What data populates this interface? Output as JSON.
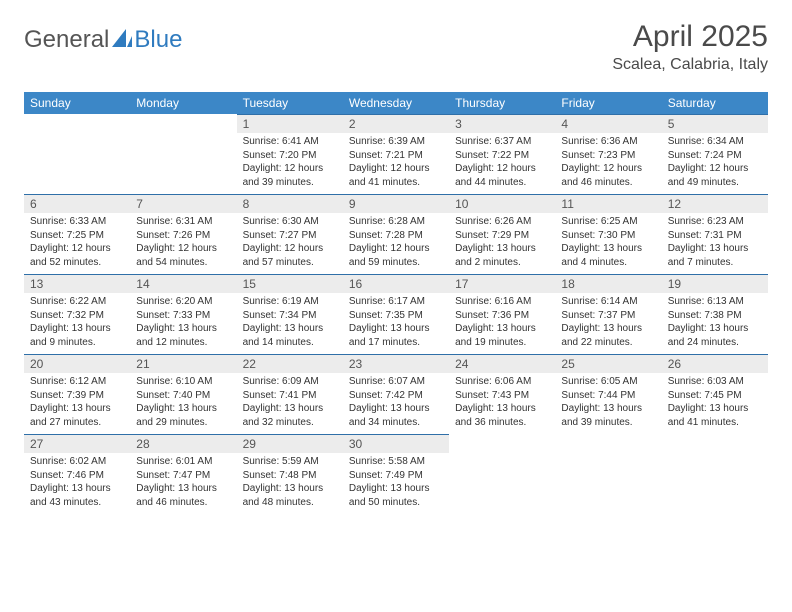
{
  "logo": {
    "text1": "General",
    "text2": "Blue"
  },
  "title": "April 2025",
  "location": "Scalea, Calabria, Italy",
  "colors": {
    "header_bg": "#3c87c7",
    "header_text": "#ffffff",
    "daynum_bg": "#ececec",
    "border": "#2f6fa8",
    "page_bg": "#ffffff",
    "text": "#333333",
    "title_text": "#4a4a4a",
    "logo_gray": "#555555",
    "logo_blue": "#2f7bbf"
  },
  "weekdays": [
    "Sunday",
    "Monday",
    "Tuesday",
    "Wednesday",
    "Thursday",
    "Friday",
    "Saturday"
  ],
  "weeks": [
    [
      null,
      null,
      {
        "n": "1",
        "sr": "6:41 AM",
        "ss": "7:20 PM",
        "dl": "12 hours and 39 minutes."
      },
      {
        "n": "2",
        "sr": "6:39 AM",
        "ss": "7:21 PM",
        "dl": "12 hours and 41 minutes."
      },
      {
        "n": "3",
        "sr": "6:37 AM",
        "ss": "7:22 PM",
        "dl": "12 hours and 44 minutes."
      },
      {
        "n": "4",
        "sr": "6:36 AM",
        "ss": "7:23 PM",
        "dl": "12 hours and 46 minutes."
      },
      {
        "n": "5",
        "sr": "6:34 AM",
        "ss": "7:24 PM",
        "dl": "12 hours and 49 minutes."
      }
    ],
    [
      {
        "n": "6",
        "sr": "6:33 AM",
        "ss": "7:25 PM",
        "dl": "12 hours and 52 minutes."
      },
      {
        "n": "7",
        "sr": "6:31 AM",
        "ss": "7:26 PM",
        "dl": "12 hours and 54 minutes."
      },
      {
        "n": "8",
        "sr": "6:30 AM",
        "ss": "7:27 PM",
        "dl": "12 hours and 57 minutes."
      },
      {
        "n": "9",
        "sr": "6:28 AM",
        "ss": "7:28 PM",
        "dl": "12 hours and 59 minutes."
      },
      {
        "n": "10",
        "sr": "6:26 AM",
        "ss": "7:29 PM",
        "dl": "13 hours and 2 minutes."
      },
      {
        "n": "11",
        "sr": "6:25 AM",
        "ss": "7:30 PM",
        "dl": "13 hours and 4 minutes."
      },
      {
        "n": "12",
        "sr": "6:23 AM",
        "ss": "7:31 PM",
        "dl": "13 hours and 7 minutes."
      }
    ],
    [
      {
        "n": "13",
        "sr": "6:22 AM",
        "ss": "7:32 PM",
        "dl": "13 hours and 9 minutes."
      },
      {
        "n": "14",
        "sr": "6:20 AM",
        "ss": "7:33 PM",
        "dl": "13 hours and 12 minutes."
      },
      {
        "n": "15",
        "sr": "6:19 AM",
        "ss": "7:34 PM",
        "dl": "13 hours and 14 minutes."
      },
      {
        "n": "16",
        "sr": "6:17 AM",
        "ss": "7:35 PM",
        "dl": "13 hours and 17 minutes."
      },
      {
        "n": "17",
        "sr": "6:16 AM",
        "ss": "7:36 PM",
        "dl": "13 hours and 19 minutes."
      },
      {
        "n": "18",
        "sr": "6:14 AM",
        "ss": "7:37 PM",
        "dl": "13 hours and 22 minutes."
      },
      {
        "n": "19",
        "sr": "6:13 AM",
        "ss": "7:38 PM",
        "dl": "13 hours and 24 minutes."
      }
    ],
    [
      {
        "n": "20",
        "sr": "6:12 AM",
        "ss": "7:39 PM",
        "dl": "13 hours and 27 minutes."
      },
      {
        "n": "21",
        "sr": "6:10 AM",
        "ss": "7:40 PM",
        "dl": "13 hours and 29 minutes."
      },
      {
        "n": "22",
        "sr": "6:09 AM",
        "ss": "7:41 PM",
        "dl": "13 hours and 32 minutes."
      },
      {
        "n": "23",
        "sr": "6:07 AM",
        "ss": "7:42 PM",
        "dl": "13 hours and 34 minutes."
      },
      {
        "n": "24",
        "sr": "6:06 AM",
        "ss": "7:43 PM",
        "dl": "13 hours and 36 minutes."
      },
      {
        "n": "25",
        "sr": "6:05 AM",
        "ss": "7:44 PM",
        "dl": "13 hours and 39 minutes."
      },
      {
        "n": "26",
        "sr": "6:03 AM",
        "ss": "7:45 PM",
        "dl": "13 hours and 41 minutes."
      }
    ],
    [
      {
        "n": "27",
        "sr": "6:02 AM",
        "ss": "7:46 PM",
        "dl": "13 hours and 43 minutes."
      },
      {
        "n": "28",
        "sr": "6:01 AM",
        "ss": "7:47 PM",
        "dl": "13 hours and 46 minutes."
      },
      {
        "n": "29",
        "sr": "5:59 AM",
        "ss": "7:48 PM",
        "dl": "13 hours and 48 minutes."
      },
      {
        "n": "30",
        "sr": "5:58 AM",
        "ss": "7:49 PM",
        "dl": "13 hours and 50 minutes."
      },
      null,
      null,
      null
    ]
  ],
  "labels": {
    "sunrise": "Sunrise:",
    "sunset": "Sunset:",
    "daylight": "Daylight:"
  }
}
